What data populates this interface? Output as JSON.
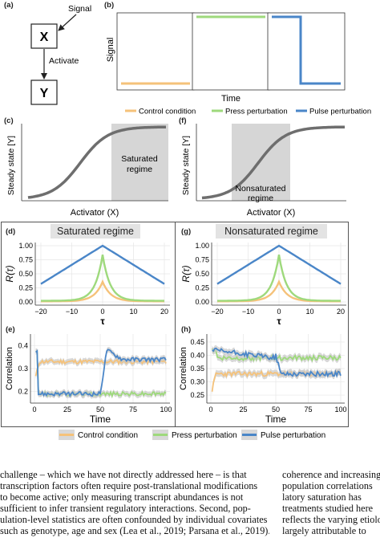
{
  "panel_labels": [
    "(a)",
    "(b)",
    "(c)",
    "(f)",
    "(d)",
    "(g)",
    "(e)",
    "(h)"
  ],
  "diagram": {
    "node_x": "X",
    "node_y": "Y",
    "signal_label": "Signal",
    "activate_label": "Activate"
  },
  "panel_b": {
    "ylabel": "Signal",
    "xlabel": "Time"
  },
  "legend_top": [
    "Control condition",
    "Press perturbation",
    "Pulse perturbation"
  ],
  "panel_c": {
    "ylabel": "Steady state [Y]",
    "xlabel": "Activator (X)",
    "region_label_lines": [
      "Saturated",
      "regime"
    ]
  },
  "panel_f": {
    "ylabel": "Steady state [Y]",
    "xlabel": "Activator (X)",
    "region_label_lines": [
      "Nonsaturated",
      "regime"
    ]
  },
  "panel_d_title": "Saturated regime",
  "panel_g_title": "Nonsaturated regime",
  "corr_axis": {
    "ylabel": "R(τ)",
    "xlabel": "τ",
    "xticks": [
      "−20",
      "−10",
      "0",
      "10",
      "20"
    ],
    "yticks": [
      "0.00",
      "0.25",
      "0.50",
      "0.75",
      "1.00"
    ]
  },
  "time_axis": {
    "ylabel": "Correlation",
    "xlabel": "Time",
    "xticks": [
      "0",
      "25",
      "50",
      "75",
      "100"
    ],
    "yticks_e": [
      "0.2",
      "0.3",
      "0.4"
    ],
    "yticks_h": [
      "0.25",
      "0.30",
      "0.35",
      "0.40",
      "0.45"
    ]
  },
  "legend_bottom": [
    "Control condition",
    "Press perturbation",
    "Pulse perturbation"
  ],
  "colors": {
    "control": "#f5c27a",
    "press": "#9ed97c",
    "pulse": "#4a86c8",
    "saturation_curve": "#6e6e6e",
    "region_shade": "#d6d6d6"
  },
  "body_text": {
    "left_lines": [
      "challenge – which we have not directly addressed here – is that",
      "transcription factors often require post-translational modifications",
      "to become active; only measuring transcript abundances is not",
      "sufficient to infer transient regulatory interactions. Second, pop-",
      "ulation-level statistics are often confounded by individual covariates",
      "such as genotype, age and sex (Lea et al., 2019; Parsana et al., 2019)."
    ],
    "right_lines": [
      "coherence and increasing",
      "population correlations",
      "latory saturation has",
      "treatments studied here",
      "reflects the varying etiolo",
      "largely attributable to"
    ]
  }
}
